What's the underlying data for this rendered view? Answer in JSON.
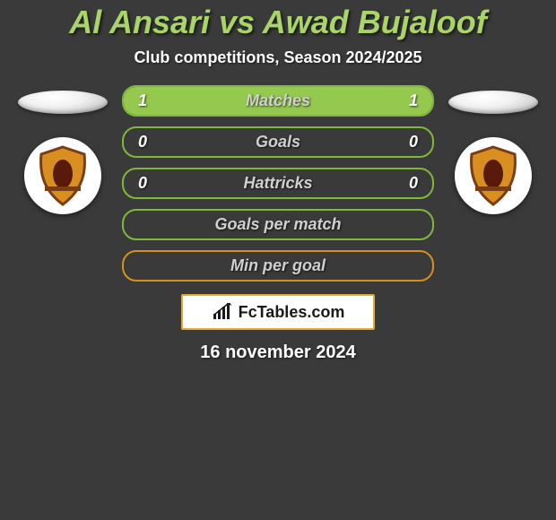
{
  "header": {
    "title": "Al Ansari vs Awad Bujaloof",
    "subtitle": "Club competitions, Season 2024/2025"
  },
  "colors": {
    "background": "#3a3a3a",
    "title_color": "#a8d468",
    "bar_green_border": "#7fb83a",
    "bar_green_fill": "#95c84f",
    "bar_orange_border": "#d98f1f",
    "bar_orange_fill": "#e6a93a",
    "label_text": "#d0d0d0",
    "white": "#ffffff"
  },
  "bars": [
    {
      "label": "Matches",
      "left": "1",
      "right": "1",
      "color": "green",
      "left_pct": 50,
      "right_pct": 50
    },
    {
      "label": "Goals",
      "left": "0",
      "right": "0",
      "color": "green",
      "left_pct": 0,
      "right_pct": 0
    },
    {
      "label": "Hattricks",
      "left": "0",
      "right": "0",
      "color": "green",
      "left_pct": 0,
      "right_pct": 0
    },
    {
      "label": "Goals per match",
      "left": "",
      "right": "",
      "color": "green",
      "left_pct": 0,
      "right_pct": 0
    },
    {
      "label": "Min per goal",
      "left": "",
      "right": "",
      "color": "orange",
      "left_pct": 0,
      "right_pct": 0
    }
  ],
  "brand": {
    "text": "FcTables.com"
  },
  "date": "16 november 2024",
  "badges": {
    "left": {
      "shield_fill": "#d98f1f",
      "shield_border": "#7a3d12"
    },
    "right": {
      "shield_fill": "#d98f1f",
      "shield_border": "#7a3d12"
    }
  }
}
